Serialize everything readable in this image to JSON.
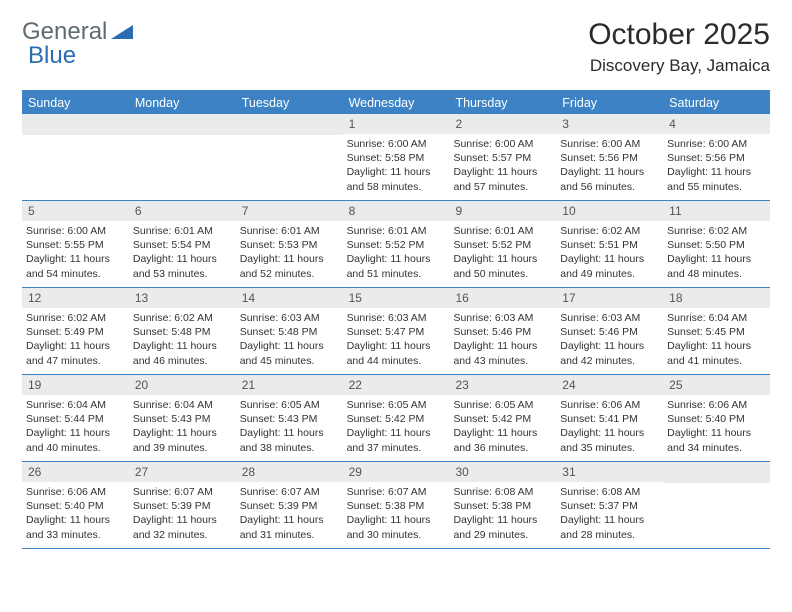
{
  "logo": {
    "general": "General",
    "blue": "Blue"
  },
  "title": "October 2025",
  "location": "Discovery Bay, Jamaica",
  "colors": {
    "header_bg": "#3d82c4",
    "daynum_bg": "#e9ebec",
    "border": "#3d82c4",
    "text": "#333333",
    "logo_gray": "#5f6b72",
    "logo_blue": "#2a6db3",
    "background": "#ffffff"
  },
  "dayNames": [
    "Sunday",
    "Monday",
    "Tuesday",
    "Wednesday",
    "Thursday",
    "Friday",
    "Saturday"
  ],
  "weeks": [
    [
      {
        "n": "",
        "lines": []
      },
      {
        "n": "",
        "lines": []
      },
      {
        "n": "",
        "lines": []
      },
      {
        "n": "1",
        "lines": [
          "Sunrise: 6:00 AM",
          "Sunset: 5:58 PM",
          "Daylight: 11 hours",
          "and 58 minutes."
        ]
      },
      {
        "n": "2",
        "lines": [
          "Sunrise: 6:00 AM",
          "Sunset: 5:57 PM",
          "Daylight: 11 hours",
          "and 57 minutes."
        ]
      },
      {
        "n": "3",
        "lines": [
          "Sunrise: 6:00 AM",
          "Sunset: 5:56 PM",
          "Daylight: 11 hours",
          "and 56 minutes."
        ]
      },
      {
        "n": "4",
        "lines": [
          "Sunrise: 6:00 AM",
          "Sunset: 5:56 PM",
          "Daylight: 11 hours",
          "and 55 minutes."
        ]
      }
    ],
    [
      {
        "n": "5",
        "lines": [
          "Sunrise: 6:00 AM",
          "Sunset: 5:55 PM",
          "Daylight: 11 hours",
          "and 54 minutes."
        ]
      },
      {
        "n": "6",
        "lines": [
          "Sunrise: 6:01 AM",
          "Sunset: 5:54 PM",
          "Daylight: 11 hours",
          "and 53 minutes."
        ]
      },
      {
        "n": "7",
        "lines": [
          "Sunrise: 6:01 AM",
          "Sunset: 5:53 PM",
          "Daylight: 11 hours",
          "and 52 minutes."
        ]
      },
      {
        "n": "8",
        "lines": [
          "Sunrise: 6:01 AM",
          "Sunset: 5:52 PM",
          "Daylight: 11 hours",
          "and 51 minutes."
        ]
      },
      {
        "n": "9",
        "lines": [
          "Sunrise: 6:01 AM",
          "Sunset: 5:52 PM",
          "Daylight: 11 hours",
          "and 50 minutes."
        ]
      },
      {
        "n": "10",
        "lines": [
          "Sunrise: 6:02 AM",
          "Sunset: 5:51 PM",
          "Daylight: 11 hours",
          "and 49 minutes."
        ]
      },
      {
        "n": "11",
        "lines": [
          "Sunrise: 6:02 AM",
          "Sunset: 5:50 PM",
          "Daylight: 11 hours",
          "and 48 minutes."
        ]
      }
    ],
    [
      {
        "n": "12",
        "lines": [
          "Sunrise: 6:02 AM",
          "Sunset: 5:49 PM",
          "Daylight: 11 hours",
          "and 47 minutes."
        ]
      },
      {
        "n": "13",
        "lines": [
          "Sunrise: 6:02 AM",
          "Sunset: 5:48 PM",
          "Daylight: 11 hours",
          "and 46 minutes."
        ]
      },
      {
        "n": "14",
        "lines": [
          "Sunrise: 6:03 AM",
          "Sunset: 5:48 PM",
          "Daylight: 11 hours",
          "and 45 minutes."
        ]
      },
      {
        "n": "15",
        "lines": [
          "Sunrise: 6:03 AM",
          "Sunset: 5:47 PM",
          "Daylight: 11 hours",
          "and 44 minutes."
        ]
      },
      {
        "n": "16",
        "lines": [
          "Sunrise: 6:03 AM",
          "Sunset: 5:46 PM",
          "Daylight: 11 hours",
          "and 43 minutes."
        ]
      },
      {
        "n": "17",
        "lines": [
          "Sunrise: 6:03 AM",
          "Sunset: 5:46 PM",
          "Daylight: 11 hours",
          "and 42 minutes."
        ]
      },
      {
        "n": "18",
        "lines": [
          "Sunrise: 6:04 AM",
          "Sunset: 5:45 PM",
          "Daylight: 11 hours",
          "and 41 minutes."
        ]
      }
    ],
    [
      {
        "n": "19",
        "lines": [
          "Sunrise: 6:04 AM",
          "Sunset: 5:44 PM",
          "Daylight: 11 hours",
          "and 40 minutes."
        ]
      },
      {
        "n": "20",
        "lines": [
          "Sunrise: 6:04 AM",
          "Sunset: 5:43 PM",
          "Daylight: 11 hours",
          "and 39 minutes."
        ]
      },
      {
        "n": "21",
        "lines": [
          "Sunrise: 6:05 AM",
          "Sunset: 5:43 PM",
          "Daylight: 11 hours",
          "and 38 minutes."
        ]
      },
      {
        "n": "22",
        "lines": [
          "Sunrise: 6:05 AM",
          "Sunset: 5:42 PM",
          "Daylight: 11 hours",
          "and 37 minutes."
        ]
      },
      {
        "n": "23",
        "lines": [
          "Sunrise: 6:05 AM",
          "Sunset: 5:42 PM",
          "Daylight: 11 hours",
          "and 36 minutes."
        ]
      },
      {
        "n": "24",
        "lines": [
          "Sunrise: 6:06 AM",
          "Sunset: 5:41 PM",
          "Daylight: 11 hours",
          "and 35 minutes."
        ]
      },
      {
        "n": "25",
        "lines": [
          "Sunrise: 6:06 AM",
          "Sunset: 5:40 PM",
          "Daylight: 11 hours",
          "and 34 minutes."
        ]
      }
    ],
    [
      {
        "n": "26",
        "lines": [
          "Sunrise: 6:06 AM",
          "Sunset: 5:40 PM",
          "Daylight: 11 hours",
          "and 33 minutes."
        ]
      },
      {
        "n": "27",
        "lines": [
          "Sunrise: 6:07 AM",
          "Sunset: 5:39 PM",
          "Daylight: 11 hours",
          "and 32 minutes."
        ]
      },
      {
        "n": "28",
        "lines": [
          "Sunrise: 6:07 AM",
          "Sunset: 5:39 PM",
          "Daylight: 11 hours",
          "and 31 minutes."
        ]
      },
      {
        "n": "29",
        "lines": [
          "Sunrise: 6:07 AM",
          "Sunset: 5:38 PM",
          "Daylight: 11 hours",
          "and 30 minutes."
        ]
      },
      {
        "n": "30",
        "lines": [
          "Sunrise: 6:08 AM",
          "Sunset: 5:38 PM",
          "Daylight: 11 hours",
          "and 29 minutes."
        ]
      },
      {
        "n": "31",
        "lines": [
          "Sunrise: 6:08 AM",
          "Sunset: 5:37 PM",
          "Daylight: 11 hours",
          "and 28 minutes."
        ]
      },
      {
        "n": "",
        "lines": []
      }
    ]
  ]
}
